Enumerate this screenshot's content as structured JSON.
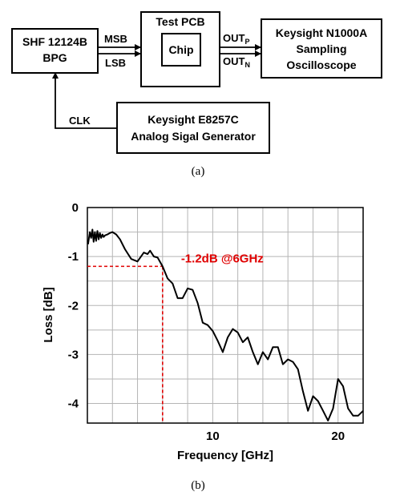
{
  "block_diagram": {
    "bpg": {
      "line1": "SHF 12124B",
      "line2": "BPG"
    },
    "pcb": {
      "title": "Test PCB",
      "chip": "Chip"
    },
    "scope": {
      "line1": "Keysight N1000A",
      "line2": "Sampling",
      "line3": "Oscilloscope"
    },
    "generator": {
      "line1": "Keysight E8257C",
      "line2": "Analog Sigal Generator"
    },
    "signals": {
      "msb": "MSB",
      "lsb": "LSB",
      "outp_main": "OUT",
      "outp_sub": "P",
      "outn_main": "OUT",
      "outn_sub": "N",
      "clk": "CLK"
    },
    "caption": "(a)"
  },
  "chart_data": {
    "type": "line",
    "xlabel": "Frequency [GHz]",
    "ylabel": "Loss [dB]",
    "xlim": [
      0,
      22
    ],
    "ylim": [
      -4.4,
      0
    ],
    "x_ticks": [
      10,
      20
    ],
    "y_ticks": [
      0,
      -1,
      -2,
      -3,
      -4
    ],
    "x_tick_labels": [
      "10",
      "20"
    ],
    "y_tick_labels": [
      "0",
      "-1",
      "-2",
      "-3",
      "-4"
    ],
    "grid": true,
    "annotation": {
      "text": "-1.2dB @6GHz",
      "x": 6,
      "y": -1.2,
      "color": "#e00000"
    },
    "series": [
      {
        "color": "#000000",
        "x": [
          0.05,
          0.2,
          0.3,
          0.4,
          0.5,
          0.6,
          0.7,
          0.8,
          0.9,
          1.0,
          1.1,
          1.2,
          1.3,
          1.4,
          1.6,
          1.8,
          2.0,
          2.3,
          2.6,
          3.0,
          3.5,
          4.0,
          4.5,
          4.8,
          5.0,
          5.3,
          5.6,
          6.0,
          6.4,
          6.8,
          7.2,
          7.6,
          8.0,
          8.4,
          8.8,
          9.2,
          9.6,
          10.0,
          10.4,
          10.8,
          11.2,
          11.6,
          12.0,
          12.4,
          12.8,
          13.2,
          13.6,
          14.0,
          14.4,
          14.8,
          15.2,
          15.6,
          16.0,
          16.4,
          16.8,
          17.2,
          17.6,
          18.0,
          18.4,
          18.8,
          19.2,
          19.6,
          20.0,
          20.4,
          20.8,
          21.2,
          21.6,
          22.0
        ],
        "y": [
          -0.75,
          -0.5,
          -0.62,
          -0.45,
          -0.7,
          -0.5,
          -0.68,
          -0.48,
          -0.65,
          -0.52,
          -0.62,
          -0.55,
          -0.6,
          -0.57,
          -0.55,
          -0.52,
          -0.5,
          -0.55,
          -0.65,
          -0.85,
          -1.05,
          -1.1,
          -0.92,
          -0.95,
          -0.88,
          -1.0,
          -1.02,
          -1.2,
          -1.45,
          -1.55,
          -1.85,
          -1.85,
          -1.65,
          -1.68,
          -1.95,
          -2.35,
          -2.4,
          -2.52,
          -2.72,
          -2.95,
          -2.65,
          -2.48,
          -2.55,
          -2.75,
          -2.65,
          -2.95,
          -3.2,
          -2.95,
          -3.1,
          -2.85,
          -2.85,
          -3.2,
          -3.1,
          -3.15,
          -3.3,
          -3.75,
          -4.15,
          -3.85,
          -3.95,
          -4.15,
          -4.35,
          -4.1,
          -3.5,
          -3.65,
          -4.1,
          -4.25,
          -4.25,
          -4.15
        ]
      }
    ],
    "caption": "(b)"
  }
}
